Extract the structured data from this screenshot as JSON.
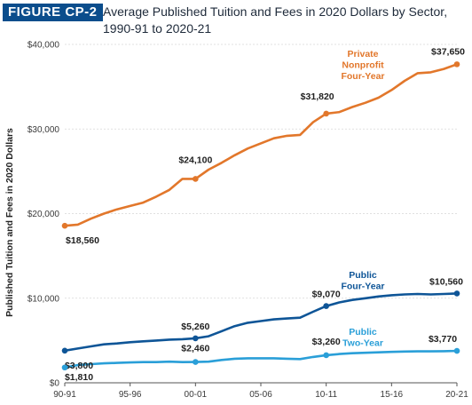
{
  "figure": {
    "label": "FIGURE CP-2",
    "title_line1": "Average Published Tuition and Fees in 2020 Dollars by Sector,",
    "title_line2": "1990-91 to 2020-21"
  },
  "colors": {
    "private_nonprofit": "#e2772b",
    "public_four_year": "#0e5597",
    "public_two_year": "#2a9fd8",
    "badge": "#0b4d8c",
    "grid": "#d6d6d6",
    "text": "#3a3a3a"
  },
  "chart_data": {
    "type": "line",
    "title": "Average Published Tuition and Fees in 2020 Dollars by Sector, 1990-91 to 2020-21",
    "xlabel": "",
    "ylabel": "Published Tuition and Fees in 2020 Dollars",
    "ylim": [
      0,
      40000
    ],
    "yticks": [
      {
        "value": 0,
        "label": "$0"
      },
      {
        "value": 10000,
        "label": "$10,000"
      },
      {
        "value": 20000,
        "label": "$20,000"
      },
      {
        "value": 30000,
        "label": "$30,000"
      },
      {
        "value": 40000,
        "label": "$40,000"
      }
    ],
    "categories": [
      "90-91",
      "91-92",
      "92-93",
      "93-94",
      "94-95",
      "95-96",
      "96-97",
      "97-98",
      "98-99",
      "99-00",
      "00-01",
      "01-02",
      "02-03",
      "03-04",
      "04-05",
      "05-06",
      "06-07",
      "07-08",
      "08-09",
      "09-10",
      "10-11",
      "11-12",
      "12-13",
      "13-14",
      "14-15",
      "15-16",
      "16-17",
      "17-18",
      "18-19",
      "19-20",
      "20-21"
    ],
    "xtick_labels": [
      "90-91",
      "95-96",
      "00-01",
      "05-06",
      "10-11",
      "15-16",
      "20-21"
    ],
    "xtick_indices": [
      0,
      5,
      10,
      15,
      20,
      25,
      30
    ],
    "grid": true,
    "series": [
      {
        "key": "private_nonprofit",
        "name": "Private Nonprofit Four-Year",
        "name_lines": [
          "Private",
          "Nonprofit",
          "Four-Year"
        ],
        "values": [
          18560,
          18700,
          19400,
          20000,
          20500,
          20900,
          21300,
          22000,
          22800,
          24100,
          24100,
          25200,
          26000,
          26900,
          27700,
          28300,
          28900,
          29200,
          29300,
          30800,
          31820,
          32000,
          32600,
          33100,
          33700,
          34600,
          35700,
          36600,
          36700,
          37100,
          37650
        ]
      },
      {
        "key": "public_four_year",
        "name": "Public Four-Year",
        "name_lines": [
          "Public",
          "Four-Year"
        ],
        "values": [
          3800,
          4050,
          4300,
          4550,
          4650,
          4800,
          4900,
          5000,
          5100,
          5150,
          5260,
          5500,
          6100,
          6700,
          7100,
          7300,
          7500,
          7600,
          7700,
          8400,
          9070,
          9500,
          9800,
          10000,
          10200,
          10350,
          10450,
          10500,
          10450,
          10500,
          10560
        ]
      },
      {
        "key": "public_two_year",
        "name": "Public Two-Year",
        "name_lines": [
          "Public",
          "Two-Year"
        ],
        "values": [
          1810,
          2100,
          2200,
          2300,
          2350,
          2400,
          2450,
          2450,
          2500,
          2450,
          2460,
          2500,
          2700,
          2850,
          2900,
          2900,
          2900,
          2850,
          2800,
          3050,
          3260,
          3400,
          3500,
          3550,
          3600,
          3650,
          3700,
          3720,
          3720,
          3740,
          3770
        ]
      }
    ],
    "data_labels": [
      {
        "series": "private_nonprofit",
        "index": 0,
        "text": "$18,560"
      },
      {
        "series": "private_nonprofit",
        "index": 10,
        "text": "$24,100"
      },
      {
        "series": "private_nonprofit",
        "index": 20,
        "text": "$31,820"
      },
      {
        "series": "private_nonprofit",
        "index": 30,
        "text": "$37,650"
      },
      {
        "series": "public_four_year",
        "index": 0,
        "text": "$3,800"
      },
      {
        "series": "public_four_year",
        "index": 10,
        "text": "$5,260"
      },
      {
        "series": "public_four_year",
        "index": 20,
        "text": "$9,070"
      },
      {
        "series": "public_four_year",
        "index": 30,
        "text": "$10,560"
      },
      {
        "series": "public_two_year",
        "index": 0,
        "text": "$1,810"
      },
      {
        "series": "public_two_year",
        "index": 10,
        "text": "$2,460"
      },
      {
        "series": "public_two_year",
        "index": 20,
        "text": "$3,260"
      },
      {
        "series": "public_two_year",
        "index": 30,
        "text": "$3,770"
      }
    ]
  }
}
